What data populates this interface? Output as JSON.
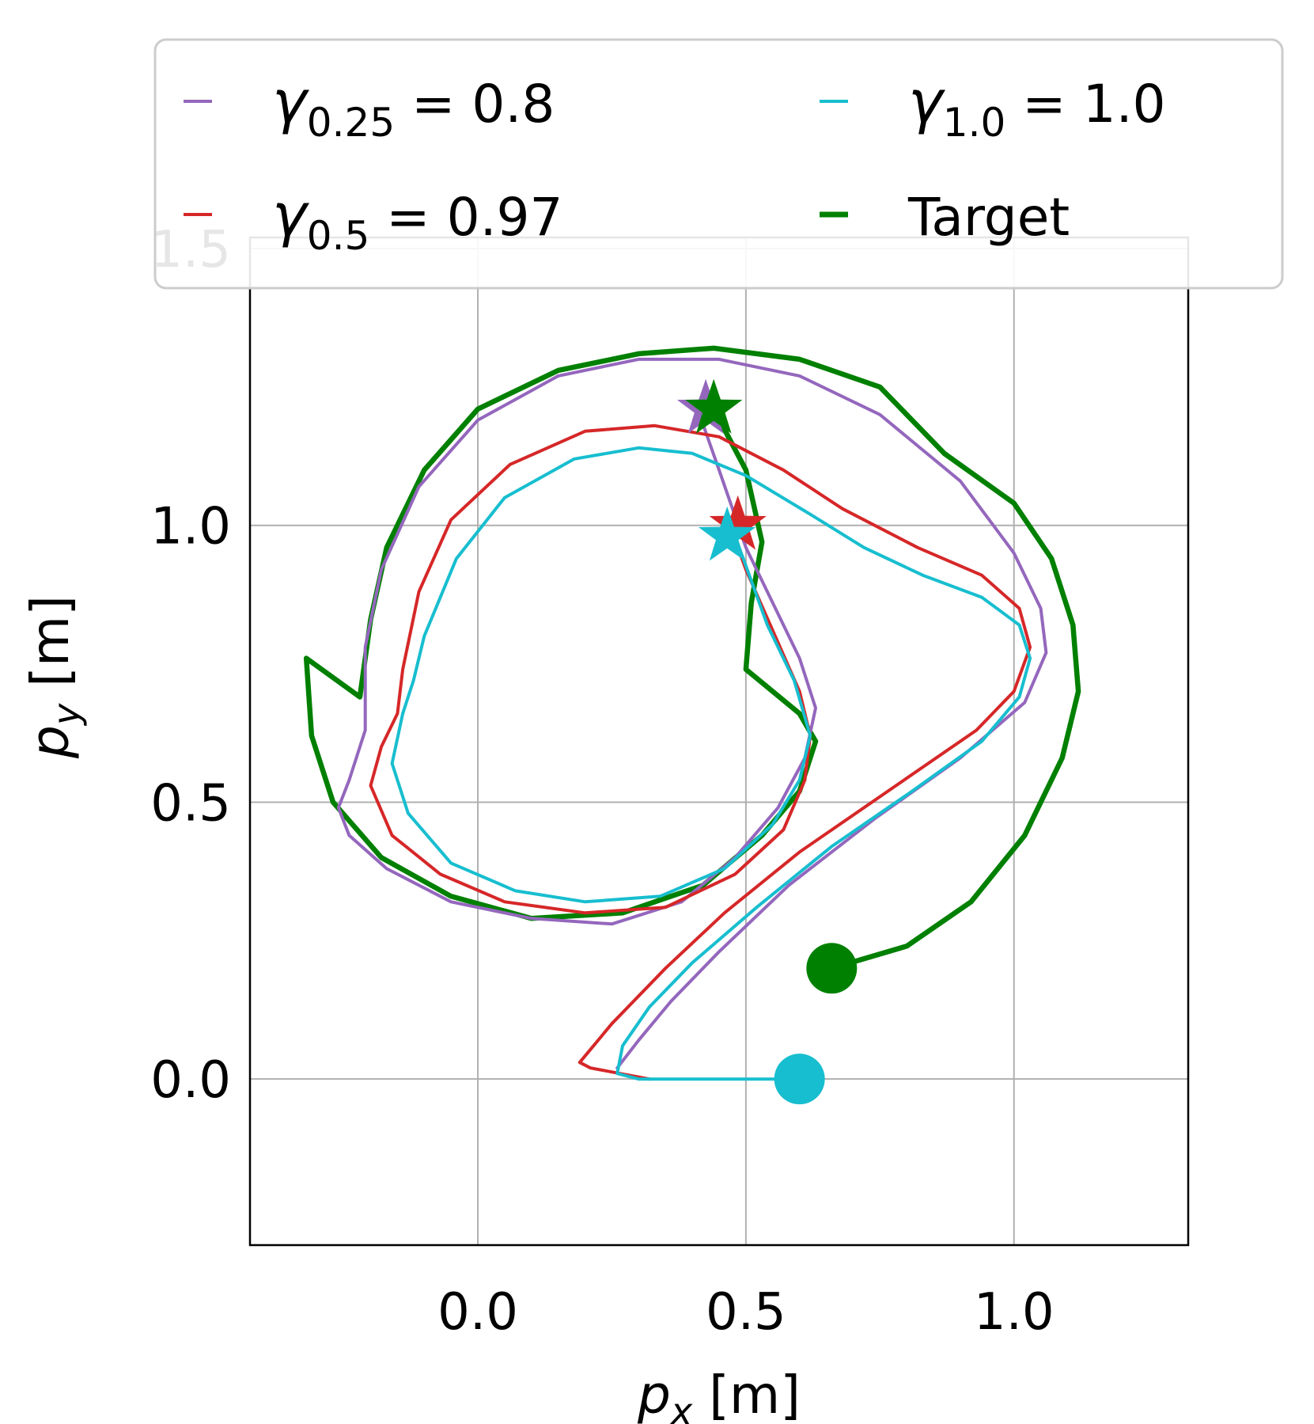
{
  "chart_data": {
    "type": "line",
    "xlabel": {
      "var": "p",
      "sub": "x",
      "unit": "[m]"
    },
    "ylabel": {
      "var": "p",
      "sub": "y",
      "unit": "[m]"
    },
    "xlim": [
      -0.425,
      1.325
    ],
    "ylim": [
      -0.3,
      1.52
    ],
    "xticks": [
      0.0,
      0.5,
      1.0
    ],
    "yticks": [
      0.0,
      0.5,
      1.0,
      1.5
    ],
    "xtick_labels": [
      "0.0",
      "0.5",
      "1.0"
    ],
    "ytick_labels": [
      "0.0",
      "0.5",
      "1.0",
      "1.5"
    ],
    "grid": true,
    "legend_position": "top",
    "legend": [
      {
        "sym": "γ",
        "sub": "0.25",
        "rest": " = 0.8",
        "text": "γ0.25 = 0.8",
        "color": "#9467bd"
      },
      {
        "sym": "γ",
        "sub": "1.0",
        "rest": " = 1.0",
        "text": "γ1.0 = 1.0",
        "color": "#17becf"
      },
      {
        "sym": "γ",
        "sub": "0.5",
        "rest": " = 0.97",
        "text": "γ0.5 = 0.97",
        "color": "#d62728"
      },
      {
        "sym": "",
        "sub": "",
        "rest": "Target",
        "text": "Target",
        "color": "#008000"
      }
    ],
    "series": [
      {
        "name": "Target",
        "color": "#008000",
        "width": 6.5,
        "points": [
          [
            0.66,
            0.2
          ],
          [
            0.8,
            0.24
          ],
          [
            0.92,
            0.32
          ],
          [
            1.02,
            0.44
          ],
          [
            1.09,
            0.58
          ],
          [
            1.12,
            0.7
          ],
          [
            1.11,
            0.82
          ],
          [
            1.07,
            0.94
          ],
          [
            1.0,
            1.04
          ],
          [
            0.87,
            1.13
          ],
          [
            0.75,
            1.25
          ],
          [
            0.6,
            1.3
          ],
          [
            0.44,
            1.32
          ],
          [
            0.3,
            1.31
          ],
          [
            0.15,
            1.28
          ],
          [
            0.0,
            1.21
          ],
          [
            -0.1,
            1.1
          ],
          [
            -0.17,
            0.96
          ],
          [
            -0.2,
            0.83
          ],
          [
            -0.22,
            0.69
          ],
          [
            -0.32,
            0.76
          ],
          [
            -0.31,
            0.62
          ],
          [
            -0.27,
            0.5
          ],
          [
            -0.18,
            0.4
          ],
          [
            -0.05,
            0.33
          ],
          [
            0.1,
            0.29
          ],
          [
            0.27,
            0.3
          ],
          [
            0.42,
            0.35
          ],
          [
            0.53,
            0.44
          ],
          [
            0.6,
            0.52
          ],
          [
            0.63,
            0.61
          ],
          [
            0.6,
            0.66
          ],
          [
            0.5,
            0.74
          ],
          [
            0.51,
            0.86
          ],
          [
            0.53,
            0.97
          ],
          [
            0.5,
            1.1
          ],
          [
            0.44,
            1.21
          ]
        ]
      },
      {
        "name": "γ0.25 = 0.8",
        "color": "#9467bd",
        "width": 4,
        "points": [
          [
            0.26,
            0.02
          ],
          [
            0.3,
            0.07
          ],
          [
            0.36,
            0.14
          ],
          [
            0.45,
            0.23
          ],
          [
            0.58,
            0.35
          ],
          [
            0.74,
            0.47
          ],
          [
            0.9,
            0.58
          ],
          [
            1.02,
            0.68
          ],
          [
            1.06,
            0.77
          ],
          [
            1.05,
            0.85
          ],
          [
            1.0,
            0.95
          ],
          [
            0.9,
            1.08
          ],
          [
            0.75,
            1.2
          ],
          [
            0.6,
            1.27
          ],
          [
            0.45,
            1.3
          ],
          [
            0.3,
            1.3
          ],
          [
            0.15,
            1.27
          ],
          [
            0.0,
            1.19
          ],
          [
            -0.11,
            1.07
          ],
          [
            -0.18,
            0.92
          ],
          [
            -0.21,
            0.78
          ],
          [
            -0.21,
            0.63
          ],
          [
            -0.24,
            0.54
          ],
          [
            -0.26,
            0.49
          ],
          [
            -0.24,
            0.44
          ],
          [
            -0.17,
            0.38
          ],
          [
            -0.05,
            0.32
          ],
          [
            0.1,
            0.29
          ],
          [
            0.25,
            0.28
          ],
          [
            0.38,
            0.32
          ],
          [
            0.48,
            0.4
          ],
          [
            0.56,
            0.49
          ],
          [
            0.61,
            0.58
          ],
          [
            0.63,
            0.67
          ],
          [
            0.6,
            0.76
          ],
          [
            0.55,
            0.86
          ],
          [
            0.5,
            0.96
          ],
          [
            0.45,
            1.1
          ],
          [
            0.41,
            1.21
          ]
        ]
      },
      {
        "name": "γ0.5 = 0.97",
        "color": "#d62728",
        "width": 4,
        "points": [
          [
            0.32,
            -0.0
          ],
          [
            0.21,
            0.02
          ],
          [
            0.19,
            0.03
          ],
          [
            0.25,
            0.1
          ],
          [
            0.35,
            0.2
          ],
          [
            0.46,
            0.3
          ],
          [
            0.6,
            0.41
          ],
          [
            0.78,
            0.53
          ],
          [
            0.93,
            0.63
          ],
          [
            1.0,
            0.7
          ],
          [
            1.03,
            0.78
          ],
          [
            1.01,
            0.85
          ],
          [
            0.94,
            0.91
          ],
          [
            0.82,
            0.96
          ],
          [
            0.68,
            1.03
          ],
          [
            0.57,
            1.1
          ],
          [
            0.45,
            1.16
          ],
          [
            0.33,
            1.18
          ],
          [
            0.2,
            1.17
          ],
          [
            0.06,
            1.11
          ],
          [
            -0.05,
            1.01
          ],
          [
            -0.11,
            0.88
          ],
          [
            -0.14,
            0.74
          ],
          [
            -0.15,
            0.66
          ],
          [
            -0.18,
            0.6
          ],
          [
            -0.2,
            0.53
          ],
          [
            -0.16,
            0.44
          ],
          [
            -0.07,
            0.37
          ],
          [
            0.05,
            0.32
          ],
          [
            0.2,
            0.3
          ],
          [
            0.35,
            0.31
          ],
          [
            0.48,
            0.37
          ],
          [
            0.57,
            0.45
          ],
          [
            0.61,
            0.54
          ],
          [
            0.62,
            0.62
          ],
          [
            0.6,
            0.7
          ],
          [
            0.55,
            0.81
          ],
          [
            0.5,
            0.92
          ],
          [
            0.47,
            1.0
          ]
        ]
      },
      {
        "name": "γ1.0 = 1.0",
        "color": "#17becf",
        "width": 4,
        "points": [
          [
            0.6,
            -0.0
          ],
          [
            0.4,
            -0.0
          ],
          [
            0.3,
            0.0
          ],
          [
            0.26,
            0.01
          ],
          [
            0.27,
            0.06
          ],
          [
            0.32,
            0.13
          ],
          [
            0.4,
            0.21
          ],
          [
            0.52,
            0.31
          ],
          [
            0.66,
            0.42
          ],
          [
            0.81,
            0.52
          ],
          [
            0.94,
            0.61
          ],
          [
            1.01,
            0.69
          ],
          [
            1.03,
            0.76
          ],
          [
            1.01,
            0.82
          ],
          [
            0.94,
            0.87
          ],
          [
            0.83,
            0.91
          ],
          [
            0.72,
            0.96
          ],
          [
            0.62,
            1.02
          ],
          [
            0.5,
            1.09
          ],
          [
            0.4,
            1.13
          ],
          [
            0.3,
            1.14
          ],
          [
            0.18,
            1.12
          ],
          [
            0.05,
            1.05
          ],
          [
            -0.04,
            0.94
          ],
          [
            -0.1,
            0.8
          ],
          [
            -0.12,
            0.72
          ],
          [
            -0.14,
            0.66
          ],
          [
            -0.16,
            0.57
          ],
          [
            -0.13,
            0.48
          ],
          [
            -0.05,
            0.39
          ],
          [
            0.07,
            0.34
          ],
          [
            0.2,
            0.32
          ],
          [
            0.34,
            0.33
          ],
          [
            0.46,
            0.38
          ],
          [
            0.55,
            0.46
          ],
          [
            0.6,
            0.54
          ],
          [
            0.62,
            0.62
          ],
          [
            0.59,
            0.72
          ],
          [
            0.54,
            0.82
          ],
          [
            0.51,
            0.9
          ],
          [
            0.48,
            0.98
          ]
        ]
      }
    ],
    "markers": [
      {
        "type": "circle",
        "x": 0.66,
        "y": 0.2,
        "color": "#008000"
      },
      {
        "type": "circle",
        "x": 0.6,
        "y": 0.0,
        "color": "#17becf"
      },
      {
        "type": "star",
        "x": 0.425,
        "y": 1.21,
        "color": "#9467bd"
      },
      {
        "type": "star",
        "x": 0.485,
        "y": 1.0,
        "color": "#d62728"
      },
      {
        "type": "star",
        "x": 0.465,
        "y": 0.98,
        "color": "#17becf"
      },
      {
        "type": "star",
        "x": 0.44,
        "y": 1.21,
        "color": "#008000"
      }
    ]
  }
}
